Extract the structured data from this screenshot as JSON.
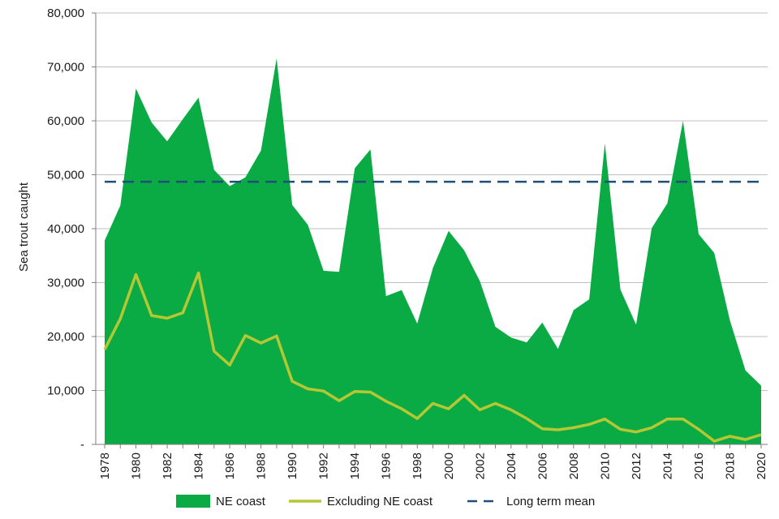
{
  "chart_data": {
    "type": "area",
    "title": "",
    "xlabel": "",
    "ylabel": "Sea trout caught",
    "ylim": [
      0,
      80000
    ],
    "yticks": [
      0,
      10000,
      20000,
      30000,
      40000,
      50000,
      60000,
      70000,
      80000
    ],
    "ytick_labels": [
      "-",
      "10,000",
      "20,000",
      "30,000",
      "40,000",
      "50,000",
      "60,000",
      "70,000",
      "80,000"
    ],
    "x": [
      1978,
      1979,
      1980,
      1981,
      1982,
      1983,
      1984,
      1985,
      1986,
      1987,
      1988,
      1989,
      1990,
      1991,
      1992,
      1993,
      1994,
      1995,
      1996,
      1997,
      1998,
      1999,
      2000,
      2001,
      2002,
      2003,
      2004,
      2005,
      2006,
      2007,
      2008,
      2009,
      2010,
      2011,
      2012,
      2013,
      2014,
      2015,
      2016,
      2017,
      2018,
      2019,
      2020
    ],
    "xtick_labels": [
      "1978",
      "1980",
      "1982",
      "1984",
      "1986",
      "1988",
      "1990",
      "1992",
      "1994",
      "1996",
      "1998",
      "2000",
      "2002",
      "2004",
      "2006",
      "2008",
      "2010",
      "2012",
      "2014",
      "2016",
      "2018",
      "2020"
    ],
    "grid": "horizontal",
    "legend_position": "bottom",
    "series": [
      {
        "name": "NE coast",
        "kind": "area",
        "color": "#0aab44",
        "values": [
          37800,
          44300,
          66000,
          59700,
          56200,
          60300,
          64300,
          50900,
          47900,
          49500,
          54500,
          71600,
          44400,
          40700,
          32200,
          32000,
          51200,
          54700,
          27500,
          28600,
          22400,
          32700,
          39600,
          36000,
          30300,
          21800,
          19800,
          18900,
          22600,
          17700,
          24900,
          26900,
          55800,
          28700,
          22200,
          40100,
          44700,
          60000,
          39000,
          35500,
          23000,
          13700,
          10900
        ]
      },
      {
        "name": "Excluding NE coast",
        "kind": "line",
        "color": "#b5c733",
        "values": [
          17600,
          23300,
          31500,
          23900,
          23400,
          24400,
          31800,
          17300,
          14700,
          20200,
          18800,
          20100,
          11700,
          10300,
          9900,
          8100,
          9800,
          9700,
          8000,
          6600,
          4800,
          7600,
          6600,
          9100,
          6400,
          7600,
          6400,
          4800,
          2900,
          2700,
          3100,
          3700,
          4700,
          2800,
          2300,
          3100,
          4700,
          4700,
          2800,
          600,
          1500,
          900,
          1800
        ]
      },
      {
        "name": "Long term mean",
        "kind": "dashed",
        "color": "#1f4e79",
        "value": 48700
      }
    ]
  }
}
